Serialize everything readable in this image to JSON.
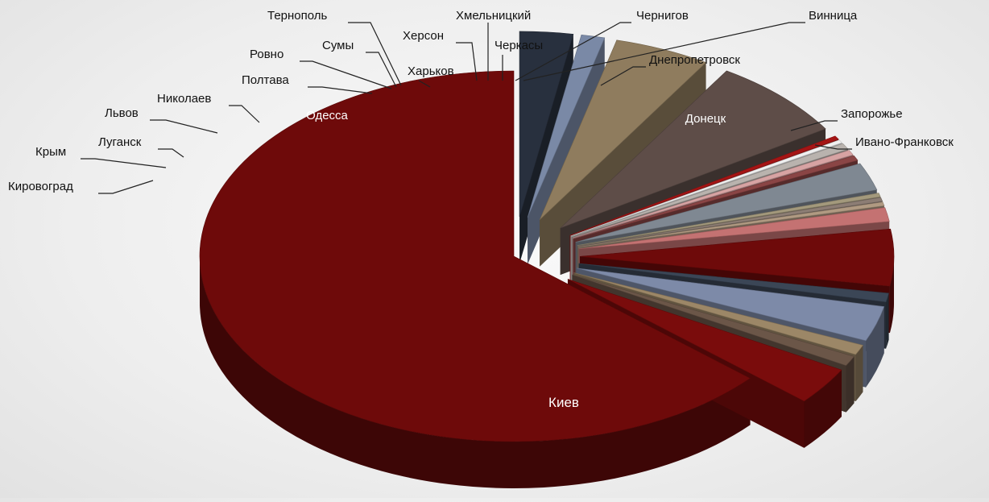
{
  "chart_data": {
    "type": "pie",
    "variant": "3d-exploded",
    "title": "",
    "legend": "none",
    "slices": [
      {
        "label": "Киев",
        "value": 58.0,
        "color": "#6e0a0a"
      },
      {
        "label": "Кировоград",
        "value": 3.0,
        "color": "#7a0c0c"
      },
      {
        "label": "Крым",
        "value": 0.8,
        "color": "#6b5648"
      },
      {
        "label": "Луганск",
        "value": 0.8,
        "color": "#9c8767"
      },
      {
        "label": "Львов",
        "value": 2.8,
        "color": "#7d8aa8"
      },
      {
        "label": "Николаев",
        "value": 0.7,
        "color": "#3b4656"
      },
      {
        "label": "Одесса",
        "value": 4.5,
        "color": "#6e0a0a"
      },
      {
        "label": "Полтава",
        "value": 1.1,
        "color": "#c47272"
      },
      {
        "label": "Ровно",
        "value": 0.3,
        "color": "#b09a82"
      },
      {
        "label": "Сумы",
        "value": 0.3,
        "color": "#8c7d74"
      },
      {
        "label": "Тернополь",
        "value": 0.3,
        "color": "#a3997c"
      },
      {
        "label": "Харьков",
        "value": 2.2,
        "color": "#7f8892"
      },
      {
        "label": "Херсон",
        "value": 0.4,
        "color": "#8a4545"
      },
      {
        "label": "Хмельницкий",
        "value": 0.4,
        "color": "#d7a3a3"
      },
      {
        "label": "Черкасы",
        "value": 0.5,
        "color": "#b9b3ae"
      },
      {
        "label": "Чернигов",
        "value": 0.25,
        "color": "#f0f0f0"
      },
      {
        "label": "Винница",
        "value": 0.3,
        "color": "#a51515"
      },
      {
        "label": "Днепропетровск",
        "value": 6.5,
        "color": "#5e4d48"
      },
      {
        "label": "Донецк",
        "value": 4.5,
        "color": "#8f7c5e"
      },
      {
        "label": "Запорожье",
        "value": 1.1,
        "color": "#7a89a6"
      },
      {
        "label": "Ивано-Франковск",
        "value": 2.5,
        "color": "#28303e"
      }
    ]
  }
}
